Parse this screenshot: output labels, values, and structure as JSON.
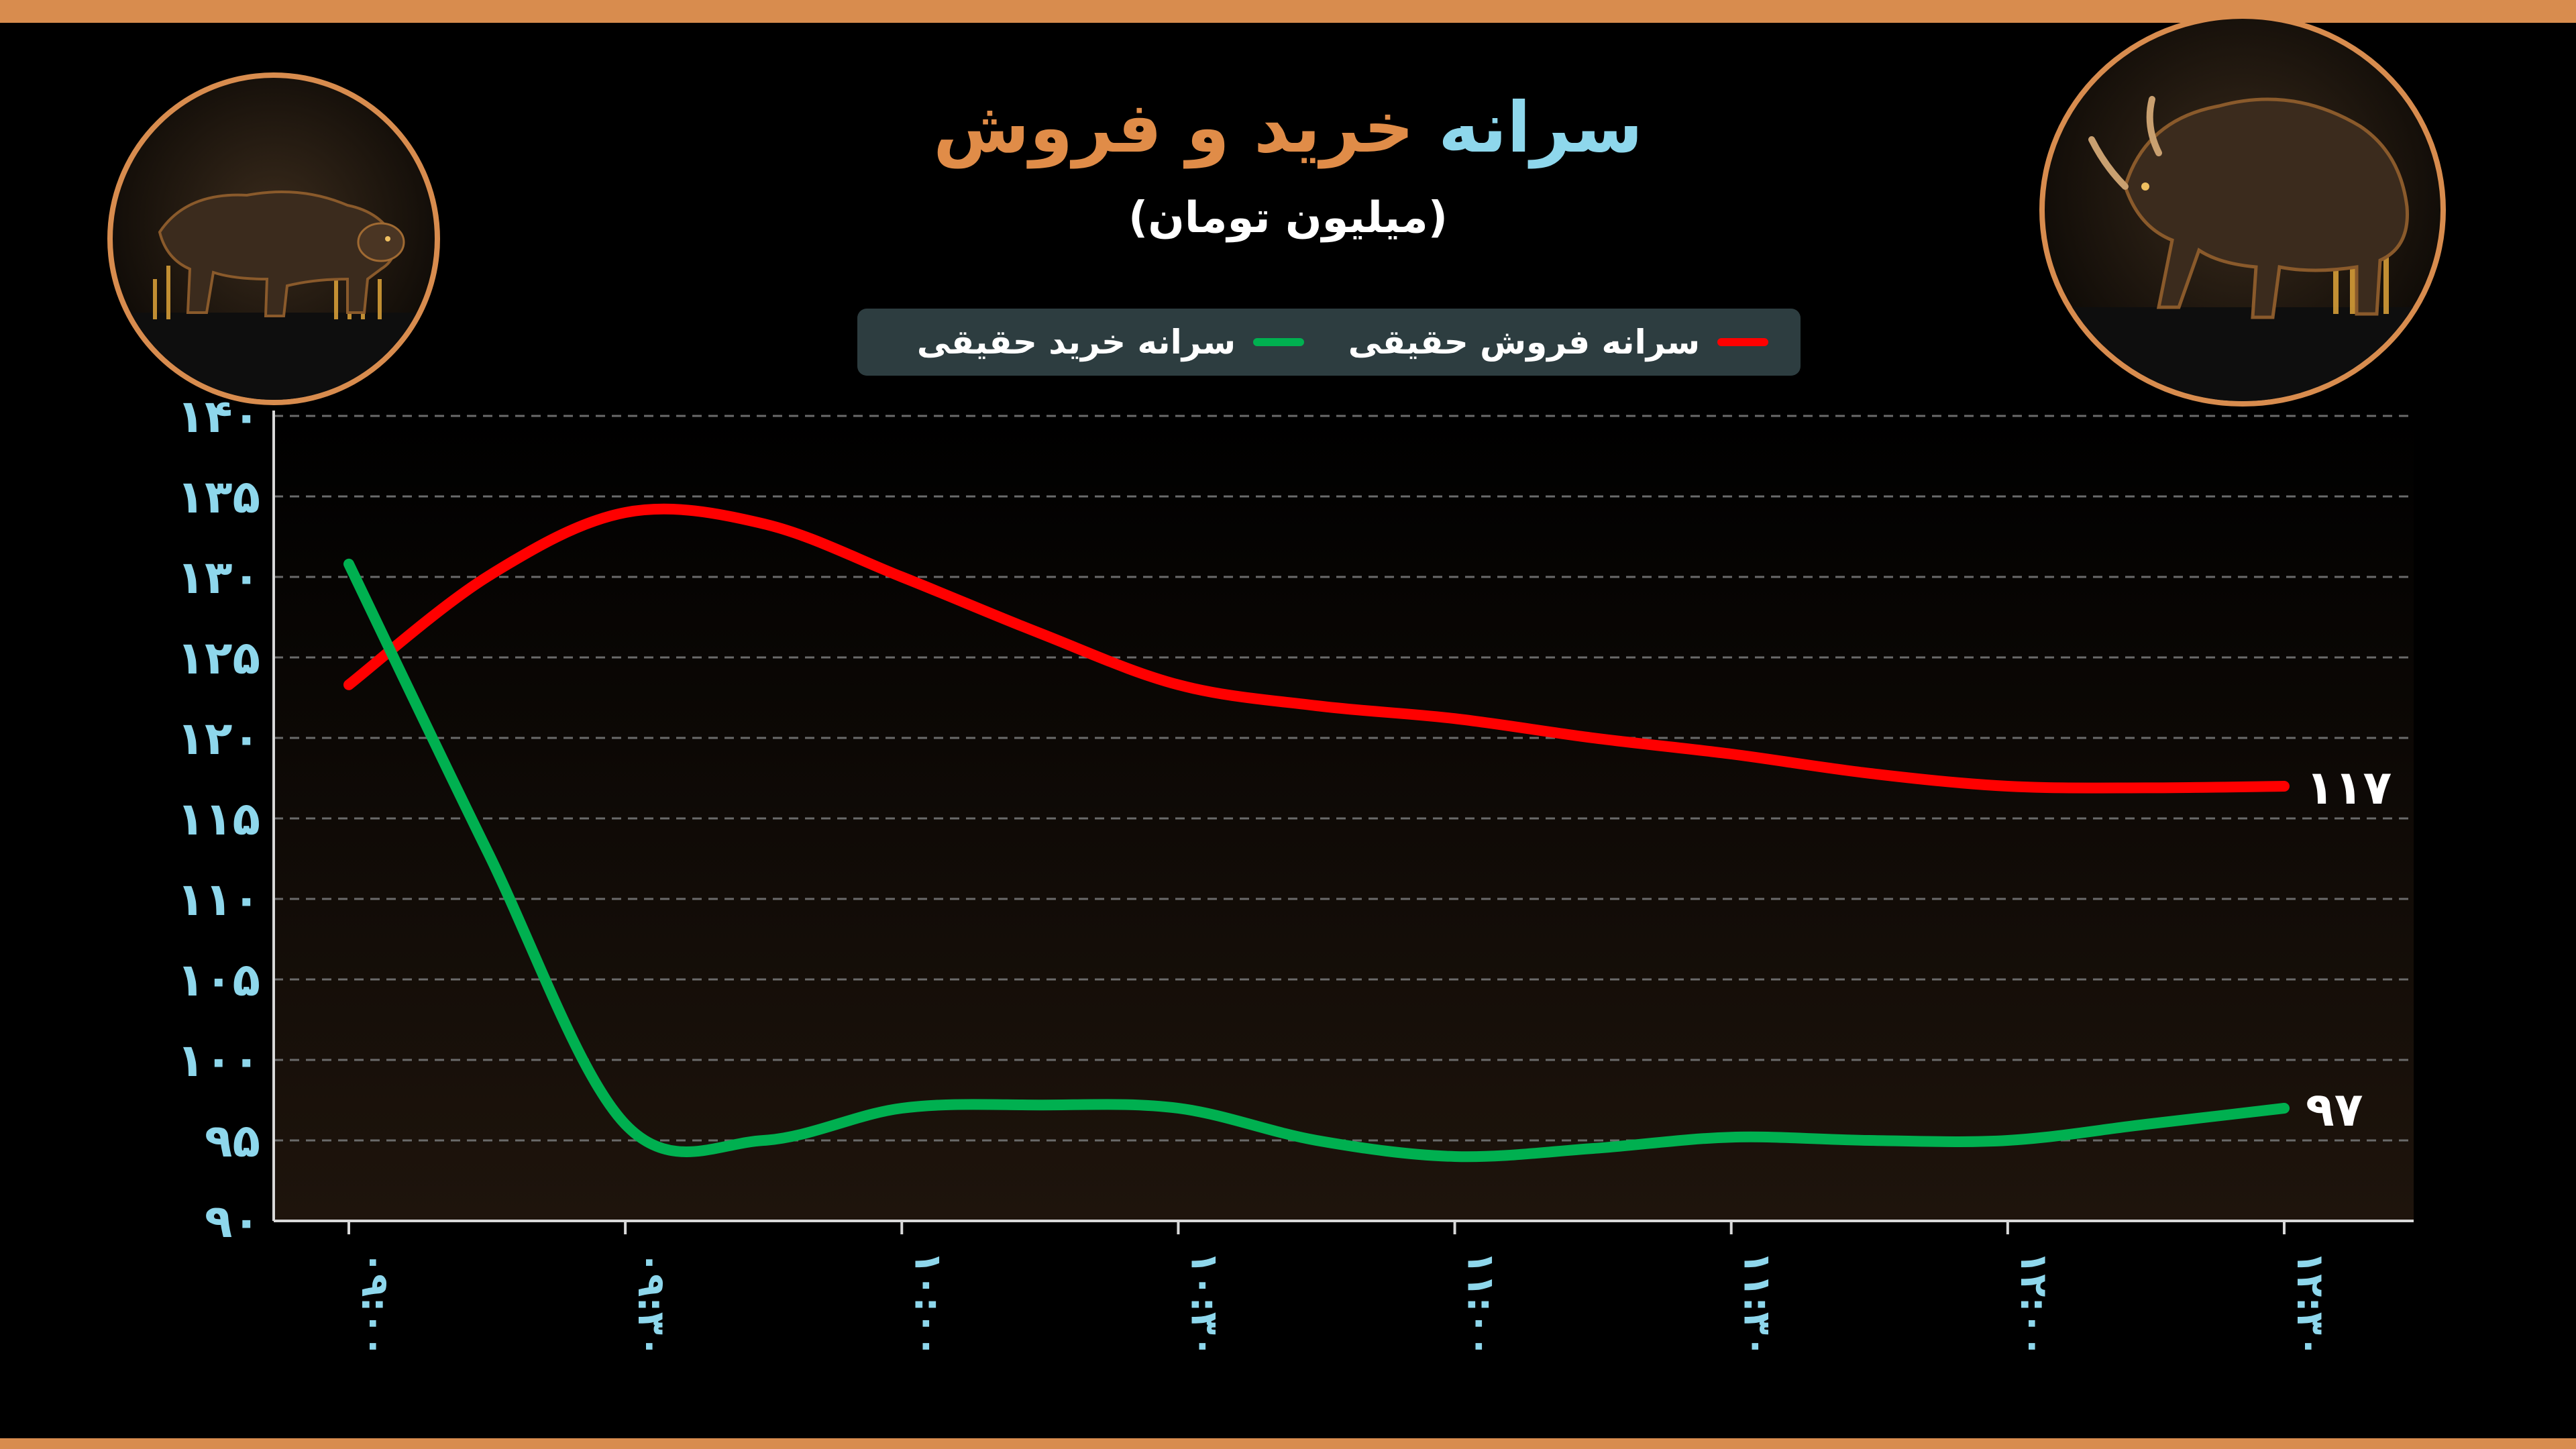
{
  "title": {
    "part1": "سرانه",
    "part2": "خرید و فروش"
  },
  "subtitle": "(میلیون تومان)",
  "legend": {
    "sell_label": "سرانه فروش حقیقی",
    "buy_label": "سرانه خرید حقیقی"
  },
  "colors": {
    "background": "#000000",
    "accent_orange": "#d88c4e",
    "title_blue": "#8ed7ec",
    "sell_line": "#ff0000",
    "buy_line": "#00b050",
    "legend_bg": "#2d3d40"
  },
  "images": {
    "left": "bear-icon",
    "right": "bull-icon"
  },
  "chart_data": {
    "type": "line",
    "x": [
      "۰۹:۰۰",
      "۰۹:۳۰",
      "۱۰:۰۰",
      "۱۰:۳۰",
      "۱۱:۰۰",
      "۱۱:۳۰",
      "۱۲:۰۰",
      "۱۲:۳۰"
    ],
    "y_ticks": [
      "۹۰",
      "۹۵",
      "۱۰۰",
      "۱۰۵",
      "۱۱۰",
      "۱۱۵",
      "۱۲۰",
      "۱۲۵",
      "۱۳۰",
      "۱۳۵",
      "۱۴۰"
    ],
    "ylim": [
      90,
      140
    ],
    "grid": true,
    "legend_position": "top-center",
    "series": [
      {
        "name": "سرانه فروش حقیقی",
        "color": "#ff0000",
        "x_values": [
          0,
          0.5,
          1,
          1.5,
          2,
          2.5,
          3,
          3.5,
          4,
          4.5,
          5,
          5.5,
          6,
          6.5,
          7
        ],
        "values": [
          123.3,
          130.0,
          134.0,
          133.3,
          130.0,
          126.5,
          123.3,
          122.0,
          121.2,
          120.0,
          119.0,
          117.8,
          117.0,
          116.9,
          117.0
        ],
        "end_label": "۱۱۷"
      },
      {
        "name": "سرانه خرید حقیقی",
        "color": "#00b050",
        "x_values": [
          0,
          0.5,
          1,
          1.5,
          2,
          2.5,
          3,
          3.5,
          4,
          4.5,
          5,
          5.5,
          6,
          6.5,
          7
        ],
        "values": [
          130.8,
          113.0,
          96.0,
          95.0,
          97.0,
          97.2,
          97.0,
          95.0,
          94.0,
          94.5,
          95.2,
          95.0,
          95.0,
          96.0,
          97.0
        ],
        "end_label": "۹۷"
      }
    ]
  }
}
